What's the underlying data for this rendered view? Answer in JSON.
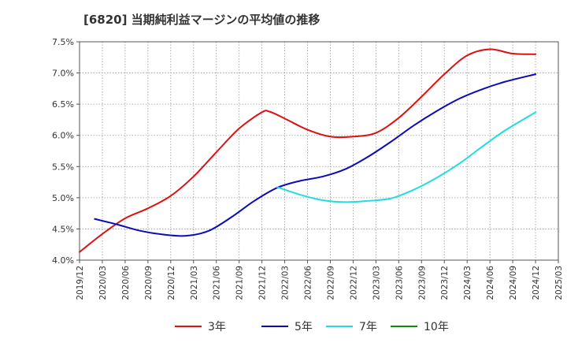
{
  "title": "[6820]  当期純利益マージンの平均値の推移",
  "colors": {
    "grid": "#999999",
    "axis": "#555555",
    "text": "#333333"
  },
  "chart_data": {
    "type": "line",
    "title": "[6820]  当期純利益マージンの平均値の推移",
    "xlabel": "",
    "ylabel": "",
    "x_ticks": [
      "2019/12",
      "2020/03",
      "2020/06",
      "2020/09",
      "2020/12",
      "2021/03",
      "2021/06",
      "2021/09",
      "2021/12",
      "2022/03",
      "2022/06",
      "2022/09",
      "2022/12",
      "2023/03",
      "2023/06",
      "2023/09",
      "2023/12",
      "2024/03",
      "2024/06",
      "2024/09",
      "2024/12",
      "2025/03"
    ],
    "y_ticks": [
      "4.0%",
      "4.5%",
      "5.0%",
      "5.5%",
      "6.0%",
      "6.5%",
      "7.0%",
      "7.5%"
    ],
    "ylim": [
      4.0,
      7.5
    ],
    "grid": true,
    "legend_position": "bottom",
    "series": [
      {
        "name": "3年",
        "color": "#dd1111",
        "points": [
          [
            "2019/12",
            4.13
          ],
          [
            "2020/03",
            4.42
          ],
          [
            "2020/06",
            4.67
          ],
          [
            "2020/09",
            4.83
          ],
          [
            "2020/12",
            5.03
          ],
          [
            "2021/03",
            5.34
          ],
          [
            "2021/06",
            5.73
          ],
          [
            "2021/09",
            6.11
          ],
          [
            "2021/12",
            6.37
          ],
          [
            "2022/01",
            6.38
          ],
          [
            "2022/03",
            6.27
          ],
          [
            "2022/06",
            6.09
          ],
          [
            "2022/09",
            5.98
          ],
          [
            "2022/12",
            5.98
          ],
          [
            "2023/03",
            6.04
          ],
          [
            "2023/06",
            6.28
          ],
          [
            "2023/09",
            6.62
          ],
          [
            "2023/12",
            6.98
          ],
          [
            "2024/03",
            7.28
          ],
          [
            "2024/06",
            7.38
          ],
          [
            "2024/09",
            7.31
          ],
          [
            "2024/12",
            7.3
          ]
        ]
      },
      {
        "name": "5年",
        "color": "#0b0bbb",
        "points": [
          [
            "2020/02",
            4.66
          ],
          [
            "2020/05",
            4.57
          ],
          [
            "2020/08",
            4.47
          ],
          [
            "2020/11",
            4.41
          ],
          [
            "2021/02",
            4.39
          ],
          [
            "2021/05",
            4.47
          ],
          [
            "2021/08",
            4.69
          ],
          [
            "2021/11",
            4.95
          ],
          [
            "2022/02",
            5.16
          ],
          [
            "2022/05",
            5.27
          ],
          [
            "2022/08",
            5.34
          ],
          [
            "2022/11",
            5.46
          ],
          [
            "2023/02",
            5.66
          ],
          [
            "2023/05",
            5.9
          ],
          [
            "2023/08",
            6.16
          ],
          [
            "2023/11",
            6.39
          ],
          [
            "2024/02",
            6.59
          ],
          [
            "2024/05",
            6.74
          ],
          [
            "2024/08",
            6.86
          ],
          [
            "2024/12",
            6.98
          ]
        ]
      },
      {
        "name": "7年",
        "color": "#22dddd",
        "points": [
          [
            "2022/02",
            5.17
          ],
          [
            "2022/05",
            5.05
          ],
          [
            "2022/08",
            4.96
          ],
          [
            "2022/11",
            4.93
          ],
          [
            "2023/02",
            4.95
          ],
          [
            "2023/05",
            4.99
          ],
          [
            "2023/08",
            5.13
          ],
          [
            "2023/11",
            5.32
          ],
          [
            "2024/02",
            5.55
          ],
          [
            "2024/05",
            5.82
          ],
          [
            "2024/08",
            6.08
          ],
          [
            "2024/12",
            6.37
          ]
        ]
      },
      {
        "name": "10年",
        "color": "#118811",
        "points": []
      }
    ]
  }
}
